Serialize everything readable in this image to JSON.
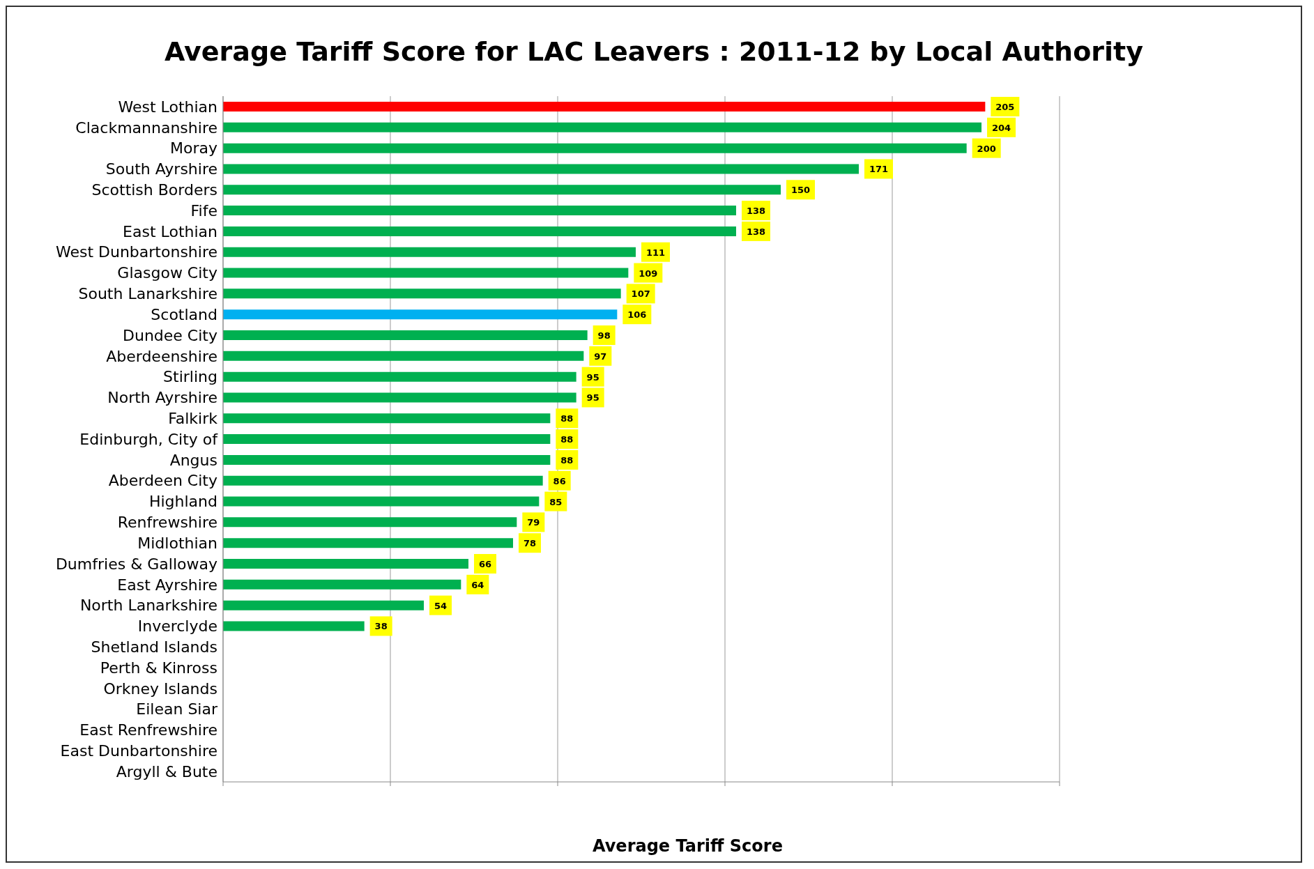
{
  "chart_data": {
    "type": "bar",
    "orientation": "horizontal",
    "title": "Average Tariff Score for LAC Leavers : 2011-12 by Local Authority",
    "xlabel": "Average Tariff Score",
    "categories": [
      "West Lothian",
      "Clackmannanshire",
      "Moray",
      "South Ayrshire",
      "Scottish Borders",
      "Fife",
      "East Lothian",
      "West Dunbartonshire",
      "Glasgow City",
      "South Lanarkshire",
      "Scotland",
      "Dundee City",
      "Aberdeenshire",
      "Stirling",
      "North Ayrshire",
      "Falkirk",
      "Edinburgh, City of",
      "Angus",
      "Aberdeen City",
      "Highland",
      "Renfrewshire",
      "Midlothian",
      "Dumfries & Galloway",
      "East Ayrshire",
      "North Lanarkshire",
      "Inverclyde",
      "Shetland Islands",
      "Perth & Kinross",
      "Orkney Islands",
      "Eilean Siar",
      "East Renfrewshire",
      "East Dunbartonshire",
      "Argyll & Bute"
    ],
    "values": [
      205,
      204,
      200,
      171,
      150,
      138,
      138,
      111,
      109,
      107,
      106,
      98,
      97,
      95,
      95,
      88,
      88,
      88,
      86,
      85,
      79,
      78,
      66,
      64,
      54,
      38,
      null,
      null,
      null,
      null,
      null,
      null,
      null
    ],
    "colors": [
      "#ff0000",
      "#00b050",
      "#00b050",
      "#00b050",
      "#00b050",
      "#00b050",
      "#00b050",
      "#00b050",
      "#00b050",
      "#00b050",
      "#00b0f0",
      "#00b050",
      "#00b050",
      "#00b050",
      "#00b050",
      "#00b050",
      "#00b050",
      "#00b050",
      "#00b050",
      "#00b050",
      "#00b050",
      "#00b050",
      "#00b050",
      "#00b050",
      "#00b050",
      "#00b050",
      "#00b050",
      "#00b050",
      "#00b050",
      "#00b050",
      "#00b050",
      "#00b050",
      "#00b050"
    ],
    "grid": "x",
    "tick_labels": "y",
    "data_labels": true
  }
}
